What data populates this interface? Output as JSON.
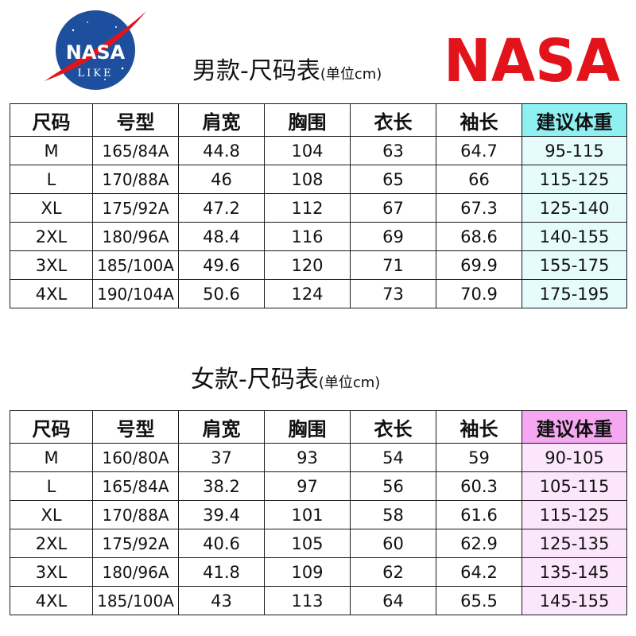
{
  "logos": {
    "meatball": {
      "top_text": "NASA",
      "bottom_text": "LIKE",
      "icon": "nasa-meatball-logo"
    },
    "worm": {
      "text": "NASA",
      "color": "#e3131b",
      "icon": "nasa-worm-logo"
    }
  },
  "colors": {
    "men_weight_header": "#8ff0f2",
    "men_weight_cells": "#e6fbfb",
    "women_weight_header": "#f5a8f1",
    "women_weight_cells": "#fce6fb",
    "meatball_blue": "#1d4f9e",
    "meatball_red": "#e3131b"
  },
  "chart_data": [
    {
      "type": "table",
      "title": "男款-尺码表",
      "unit_note": "(单位cm)",
      "columns": [
        "尺码",
        "号型",
        "肩宽",
        "胸围",
        "衣长",
        "袖长",
        "建议体重"
      ],
      "rows": [
        [
          "M",
          "165/84A",
          "44.8",
          "104",
          "63",
          "64.7",
          "95-115"
        ],
        [
          "L",
          "170/88A",
          "46",
          "108",
          "65",
          "66",
          "115-125"
        ],
        [
          "XL",
          "175/92A",
          "47.2",
          "112",
          "67",
          "67.3",
          "125-140"
        ],
        [
          "2XL",
          "180/96A",
          "48.4",
          "116",
          "69",
          "68.6",
          "140-155"
        ],
        [
          "3XL",
          "185/100A",
          "49.6",
          "120",
          "71",
          "69.9",
          "155-175"
        ],
        [
          "4XL",
          "190/104A",
          "50.6",
          "124",
          "73",
          "70.9",
          "175-195"
        ]
      ]
    },
    {
      "type": "table",
      "title": "女款-尺码表",
      "unit_note": "(单位cm)",
      "columns": [
        "尺码",
        "号型",
        "肩宽",
        "胸围",
        "衣长",
        "袖长",
        "建议体重"
      ],
      "rows": [
        [
          "M",
          "160/80A",
          "37",
          "93",
          "54",
          "59",
          "90-105"
        ],
        [
          "L",
          "165/84A",
          "38.2",
          "97",
          "56",
          "60.3",
          "105-115"
        ],
        [
          "XL",
          "170/88A",
          "39.4",
          "101",
          "58",
          "61.6",
          "115-125"
        ],
        [
          "2XL",
          "175/92A",
          "40.6",
          "105",
          "60",
          "62.9",
          "125-135"
        ],
        [
          "3XL",
          "180/96A",
          "41.8",
          "109",
          "62",
          "64.2",
          "135-145"
        ],
        [
          "4XL",
          "185/100A",
          "43",
          "113",
          "64",
          "65.5",
          "145-155"
        ]
      ]
    }
  ]
}
